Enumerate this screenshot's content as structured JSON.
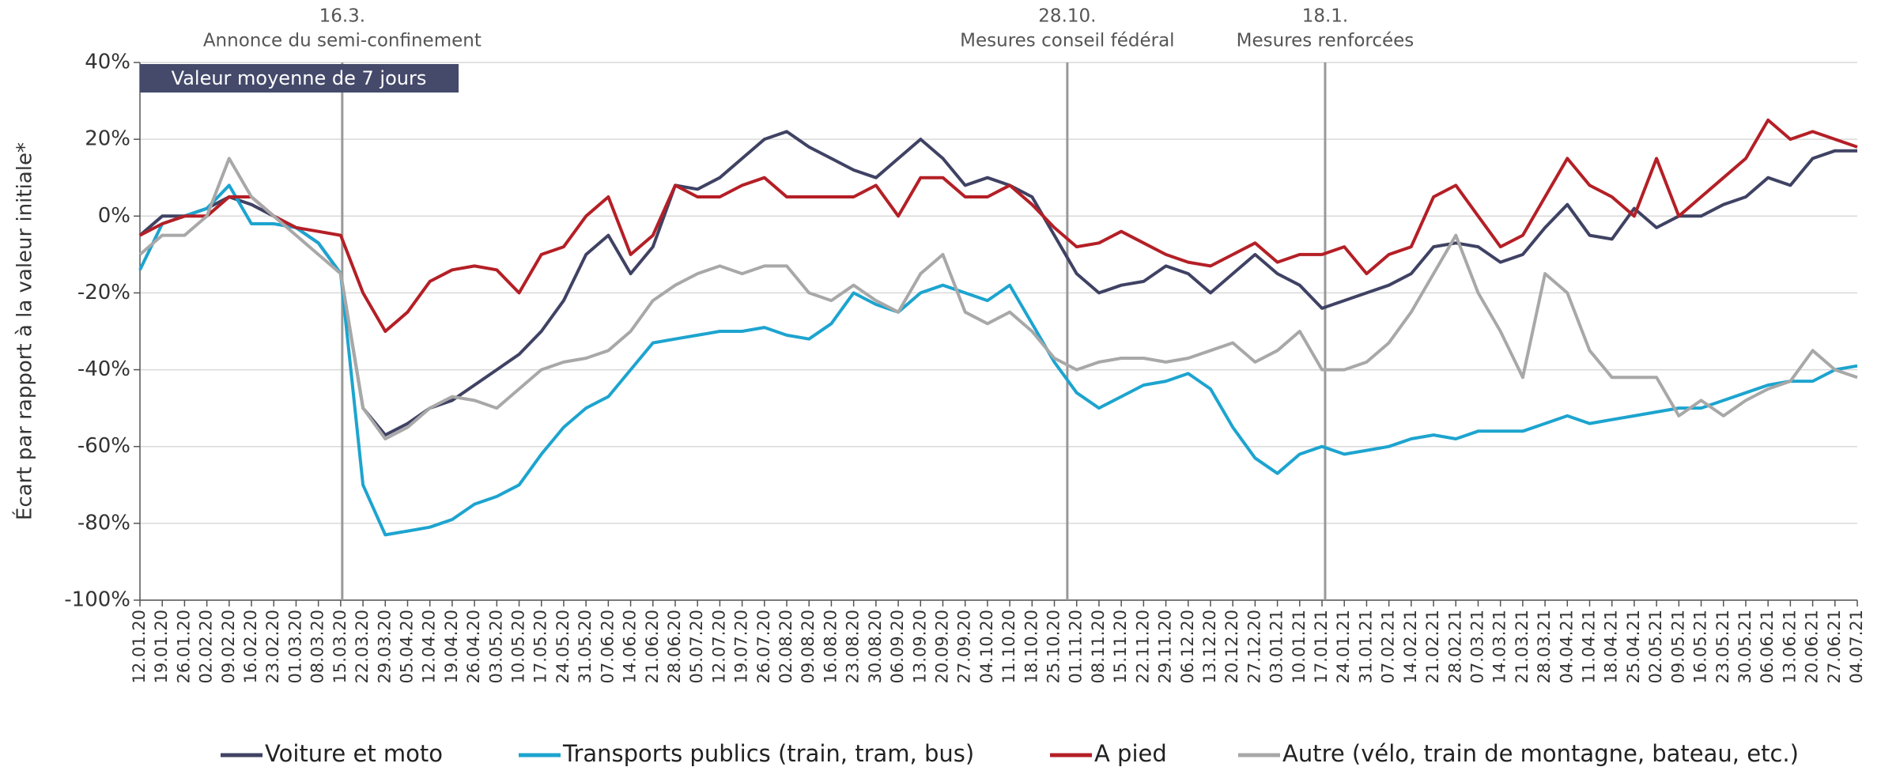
{
  "chart_data": {
    "type": "line",
    "ylabel": "Écart par rapport à la valeur initiale*",
    "note": "Valeur moyenne de 7 jours",
    "annotations": [
      {
        "date": "16.3.",
        "text": "Annonce du semi-confinement"
      },
      {
        "date": "28.10.",
        "text": "Mesures conseil fédéral"
      },
      {
        "date": "18.1.",
        "text": "Mesures renforcées"
      }
    ],
    "categories": [
      "12.01.20",
      "19.01.20",
      "26.01.20",
      "02.02.20",
      "09.02.20",
      "16.02.20",
      "23.02.20",
      "01.03.20",
      "08.03.20",
      "15.03.20",
      "22.03.20",
      "29.03.20",
      "05.04.20",
      "12.04.20",
      "19.04.20",
      "26.04.20",
      "03.05.20",
      "10.05.20",
      "17.05.20",
      "24.05.20",
      "31.05.20",
      "07.06.20",
      "14.06.20",
      "21.06.20",
      "28.06.20",
      "05.07.20",
      "12.07.20",
      "19.07.20",
      "26.07.20",
      "02.08.20",
      "09.08.20",
      "16.08.20",
      "23.08.20",
      "30.08.20",
      "06.09.20",
      "13.09.20",
      "20.09.20",
      "27.09.20",
      "04.10.20",
      "11.10.20",
      "18.10.20",
      "25.10.20",
      "01.11.20",
      "08.11.20",
      "15.11.20",
      "22.11.20",
      "29.11.20",
      "06.12.20",
      "13.12.20",
      "20.12.20",
      "27.12.20",
      "03.01.21",
      "10.01.21",
      "17.01.21",
      "24.01.21",
      "31.01.21",
      "07.02.21",
      "14.02.21",
      "21.02.21",
      "28.02.21",
      "07.03.21",
      "14.03.21",
      "21.03.21",
      "28.03.21",
      "04.04.21",
      "11.04.21",
      "18.04.21",
      "25.04.21",
      "02.05.21",
      "09.05.21",
      "16.05.21",
      "23.05.21",
      "30.05.21",
      "06.06.21",
      "13.06.21",
      "20.06.21",
      "27.06.21",
      "04.07.21"
    ],
    "series": [
      {
        "name": "Voiture et moto",
        "color": "#3f4263",
        "values": [
          -5,
          0,
          0,
          2,
          5,
          3,
          0,
          -3,
          -7,
          -15,
          -50,
          -57,
          -54,
          -50,
          -48,
          -44,
          -40,
          -36,
          -30,
          -22,
          -10,
          -5,
          -15,
          -8,
          8,
          7,
          10,
          15,
          20,
          22,
          18,
          15,
          12,
          10,
          15,
          20,
          15,
          8,
          10,
          8,
          5,
          -5,
          -15,
          -20,
          -18,
          -17,
          -13,
          -15,
          -20,
          -15,
          -10,
          -15,
          -18,
          -24,
          -22,
          -20,
          -18,
          -15,
          -8,
          -7,
          -8,
          -12,
          -10,
          -3,
          3,
          -5,
          -6,
          2,
          -3,
          0,
          0,
          3,
          5,
          10,
          8,
          15,
          17,
          17
        ]
      },
      {
        "name": "Transports publics (train, tram, bus)",
        "color": "#1da4cf",
        "values": [
          -14,
          -2,
          0,
          2,
          8,
          -2,
          -2,
          -3,
          -7,
          -15,
          -70,
          -83,
          -82,
          -81,
          -79,
          -75,
          -73,
          -70,
          -62,
          -55,
          -50,
          -47,
          -40,
          -33,
          -32,
          -31,
          -30,
          -30,
          -29,
          -31,
          -32,
          -28,
          -20,
          -23,
          -25,
          -20,
          -18,
          -20,
          -22,
          -18,
          -28,
          -38,
          -46,
          -50,
          -47,
          -44,
          -43,
          -41,
          -45,
          -55,
          -63,
          -67,
          -62,
          -60,
          -62,
          -61,
          -60,
          -58,
          -57,
          -58,
          -56,
          -56,
          -56,
          -54,
          -52,
          -54,
          -53,
          -52,
          -51,
          -50,
          -50,
          -48,
          -46,
          -44,
          -43,
          -43,
          -40,
          -39
        ]
      },
      {
        "name": "A pied",
        "color": "#b41f26",
        "values": [
          -5,
          -2,
          0,
          0,
          5,
          5,
          0,
          -3,
          -4,
          -5,
          -20,
          -30,
          -25,
          -17,
          -14,
          -13,
          -14,
          -20,
          -10,
          -8,
          0,
          5,
          -10,
          -5,
          8,
          5,
          5,
          8,
          10,
          5,
          5,
          5,
          5,
          8,
          0,
          10,
          10,
          5,
          5,
          8,
          3,
          -3,
          -8,
          -7,
          -4,
          -7,
          -10,
          -12,
          -13,
          -10,
          -7,
          -12,
          -10,
          -10,
          -8,
          -15,
          -10,
          -8,
          5,
          8,
          0,
          -8,
          -5,
          5,
          15,
          8,
          5,
          0,
          15,
          0,
          5,
          10,
          15,
          25,
          20,
          22,
          20,
          18
        ]
      },
      {
        "name": "Autre (vélo, train de montagne, bateau, etc.)",
        "color": "#a8a8a8",
        "values": [
          -10,
          -5,
          -5,
          0,
          15,
          5,
          0,
          -5,
          -10,
          -15,
          -50,
          -58,
          -55,
          -50,
          -47,
          -48,
          -50,
          -45,
          -40,
          -38,
          -37,
          -35,
          -30,
          -22,
          -18,
          -15,
          -13,
          -15,
          -13,
          -13,
          -20,
          -22,
          -18,
          -22,
          -25,
          -15,
          -10,
          -25,
          -28,
          -25,
          -30,
          -37,
          -40,
          -38,
          -37,
          -37,
          -38,
          -37,
          -35,
          -33,
          -38,
          -35,
          -30,
          -40,
          -40,
          -38,
          -33,
          -25,
          -15,
          -5,
          -20,
          -30,
          -42,
          -15,
          -20,
          -35,
          -42,
          -42,
          -42,
          -52,
          -48,
          -52,
          -48,
          -45,
          -43,
          -35,
          -40,
          -42
        ]
      }
    ],
    "ylim": [
      -100,
      40
    ],
    "yticks": [
      {
        "value": -100,
        "label": "-100%"
      },
      {
        "value": -80,
        "label": "-80%"
      },
      {
        "value": -60,
        "label": "-60%"
      },
      {
        "value": -40,
        "label": "-40%"
      },
      {
        "value": -20,
        "label": "-20%"
      },
      {
        "value": 0,
        "label": "0%"
      },
      {
        "value": 20,
        "label": "20%"
      },
      {
        "value": 40,
        "label": "40%"
      }
    ],
    "grid": true
  }
}
